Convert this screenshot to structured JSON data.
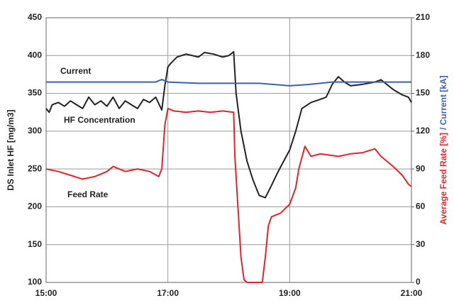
{
  "chart_data": {
    "type": "line",
    "ylabel": "DS Inlet HF [mg/m3]",
    "y2label": [
      {
        "text": "Average Feed Rate [%]",
        "color": "#e0242c"
      },
      {
        "text": "/ Current [kA]",
        "color": "#3e5fb0"
      }
    ],
    "xlim": [
      15,
      21
    ],
    "xticks": [
      {
        "value": 15,
        "label": "15:00"
      },
      {
        "value": 17,
        "label": "17:00"
      },
      {
        "value": 19,
        "label": "19:00"
      },
      {
        "value": 21,
        "label": "21:00"
      }
    ],
    "ylim": [
      100,
      450
    ],
    "yticks": [
      100,
      150,
      200,
      250,
      300,
      350,
      400,
      450
    ],
    "y2lim": [
      0,
      210
    ],
    "y2ticks": [
      0,
      30,
      60,
      90,
      120,
      150,
      180,
      210
    ],
    "grid": true,
    "series": [
      {
        "name": "HF Concentration",
        "color": "#222222",
        "x": [
          15,
          15.05,
          15.1,
          15.2,
          15.3,
          15.4,
          15.5,
          15.6,
          15.7,
          15.8,
          15.9,
          16.0,
          16.1,
          16.2,
          16.3,
          16.4,
          16.5,
          16.6,
          16.7,
          16.8,
          16.9,
          16.95,
          17.0,
          17.05,
          17.15,
          17.3,
          17.5,
          17.6,
          17.75,
          17.9,
          18.0,
          18.08,
          18.12,
          18.2,
          18.3,
          18.4,
          18.5,
          18.6,
          18.7,
          18.8,
          18.9,
          19.0,
          19.1,
          19.2,
          19.35,
          19.5,
          19.6,
          19.7,
          19.8,
          19.9,
          20.0,
          20.2,
          20.4,
          20.5,
          20.7,
          20.85,
          20.95,
          21.0
        ],
        "values": [
          330,
          325,
          335,
          338,
          333,
          340,
          335,
          330,
          345,
          335,
          340,
          333,
          345,
          330,
          340,
          335,
          330,
          342,
          338,
          345,
          328,
          360,
          385,
          390,
          398,
          402,
          398,
          404,
          402,
          398,
          400,
          405,
          350,
          300,
          260,
          235,
          215,
          212,
          228,
          245,
          260,
          275,
          300,
          330,
          338,
          342,
          345,
          362,
          372,
          365,
          360,
          362,
          365,
          368,
          355,
          348,
          345,
          338
        ]
      },
      {
        "name": "Current",
        "color": "#3e5fb0",
        "axis": "y2",
        "x": [
          15,
          16,
          16.8,
          16.9,
          17.0,
          17.5,
          18.0,
          18.5,
          19.0,
          19.3,
          19.7,
          20.0,
          20.5,
          21.0
        ],
        "values": [
          159,
          159,
          159,
          161,
          159,
          158,
          158,
          158,
          156,
          157,
          159,
          159,
          159,
          159
        ]
      },
      {
        "name": "Feed Rate",
        "color": "#e0242c",
        "axis": "y2",
        "x": [
          15,
          15.2,
          15.4,
          15.6,
          15.8,
          16.0,
          16.1,
          16.2,
          16.3,
          16.5,
          16.7,
          16.85,
          16.9,
          16.95,
          17.0,
          17.1,
          17.3,
          17.5,
          17.7,
          17.9,
          18.08,
          18.1,
          18.15,
          18.2,
          18.25,
          18.3,
          18.55,
          18.6,
          18.65,
          18.7,
          18.85,
          19.0,
          19.1,
          19.15,
          19.25,
          19.35,
          19.5,
          19.8,
          20.0,
          20.2,
          20.4,
          20.5,
          20.7,
          20.85,
          20.95,
          21.0
        ],
        "values": [
          90,
          88,
          85,
          82,
          84,
          88,
          92,
          90,
          88,
          90,
          88,
          84,
          90,
          125,
          138,
          136,
          135,
          136,
          135,
          136,
          135,
          100,
          60,
          20,
          2,
          0,
          0,
          20,
          45,
          52,
          55,
          62,
          75,
          90,
          108,
          100,
          102,
          100,
          102,
          103,
          106,
          100,
          92,
          85,
          78,
          76
        ]
      }
    ]
  }
}
